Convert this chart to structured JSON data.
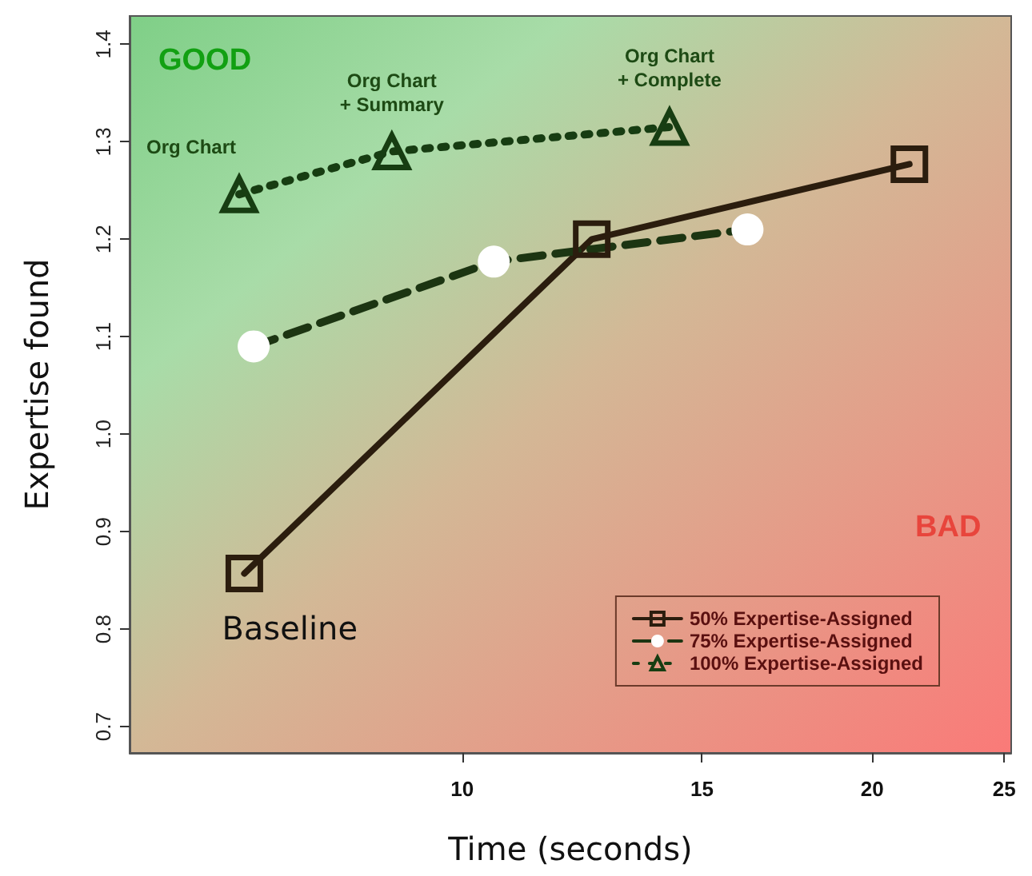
{
  "chart_data": {
    "type": "line",
    "xlabel": "Time (seconds)",
    "ylabel": "Expertise found",
    "log": "x",
    "xlim": [
      5.7,
      25.3
    ],
    "xticks": [
      10,
      15,
      20,
      25
    ],
    "ylim": [
      0.673,
      1.429
    ],
    "yticks": [
      0.7,
      0.8,
      0.9,
      {
        "value": 1,
        "label": "1.0"
      },
      1.1,
      1.2,
      1.3,
      1.4
    ],
    "grid": false,
    "legend": "bottom right",
    "series": [
      {
        "name": "50% Expertise-Assigned",
        "color": "#2b1d0e",
        "marker": "square",
        "line_style": "solid",
        "x": [
          6.92,
          12.45,
          21.3
        ],
        "values": [
          0.857,
          1.2,
          1.277
        ]
      },
      {
        "name": "75% Expertise-Assigned",
        "color": "#1c3512",
        "marker": "circle",
        "line_style": "dashed",
        "x": [
          7.03,
          10.55,
          16.2
        ],
        "values": [
          1.09,
          1.177,
          1.21
        ]
      },
      {
        "name": "100% Expertise-Assigned",
        "color": "#173d12",
        "marker": "triangle",
        "line_style": "dotted",
        "x": [
          6.86,
          8.88,
          14.2
        ],
        "values": [
          1.246,
          1.29,
          1.315
        ]
      }
    ],
    "annotations": [
      "GOOD",
      "BAD",
      {
        "text": "Baseline",
        "x": 6.92,
        "y": 0.857
      },
      {
        "text": "Org Chart",
        "x": 6.86,
        "y": 1.246
      },
      {
        "text": "Org Chart\n+ Summary",
        "x": 8.88,
        "y": 1.29
      },
      {
        "text": "Org Chart\n+ Complete",
        "x": 14.2,
        "y": 1.315
      }
    ]
  }
}
